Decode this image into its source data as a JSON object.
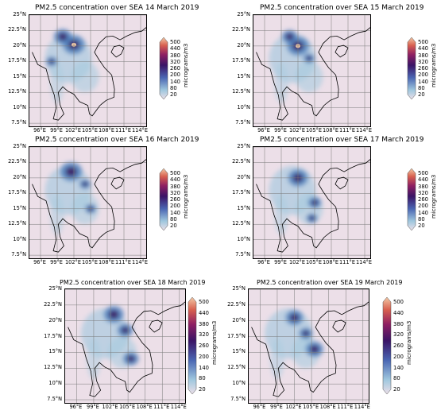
{
  "colors": {
    "background": "#ecdfe8",
    "land_low": "#a9cbe0",
    "land_mid": "#4b7fbe",
    "land_high": "#3b1460",
    "land_peak": "#f0c9a8"
  },
  "colorbar": {
    "ticks": [
      "500",
      "440",
      "380",
      "320",
      "260",
      "200",
      "140",
      "80",
      "20"
    ],
    "ticks_bottom": [
      "500",
      "440",
      "380",
      "320",
      "260",
      "200",
      "140",
      "80",
      "20"
    ],
    "unit": "micrograms/m3"
  },
  "lat_ticks": [
    "25°N",
    "22.5°N",
    "20°N",
    "17.5°N",
    "15°N",
    "12.5°N",
    "10°N",
    "7.5°N"
  ],
  "lon_ticks": [
    "96°E",
    "99°E",
    "102°E",
    "105°E",
    "108°E",
    "111°E",
    "114°E"
  ],
  "maps": [
    {
      "title": "PM2.5 concentration over SEA 14 March 2019"
    },
    {
      "title": "PM2.5 concentration over SEA 15 March 2019"
    },
    {
      "title": "PM2.5 concentration over SEA 16 March 2019"
    },
    {
      "title": "PM2.5 concentration over SEA 17 March 2019"
    },
    {
      "title": "PM2.5 concentration over SEA 18 March 2019"
    },
    {
      "title": "PM2.5 concentration over SEA 19 March 2019"
    }
  ]
}
